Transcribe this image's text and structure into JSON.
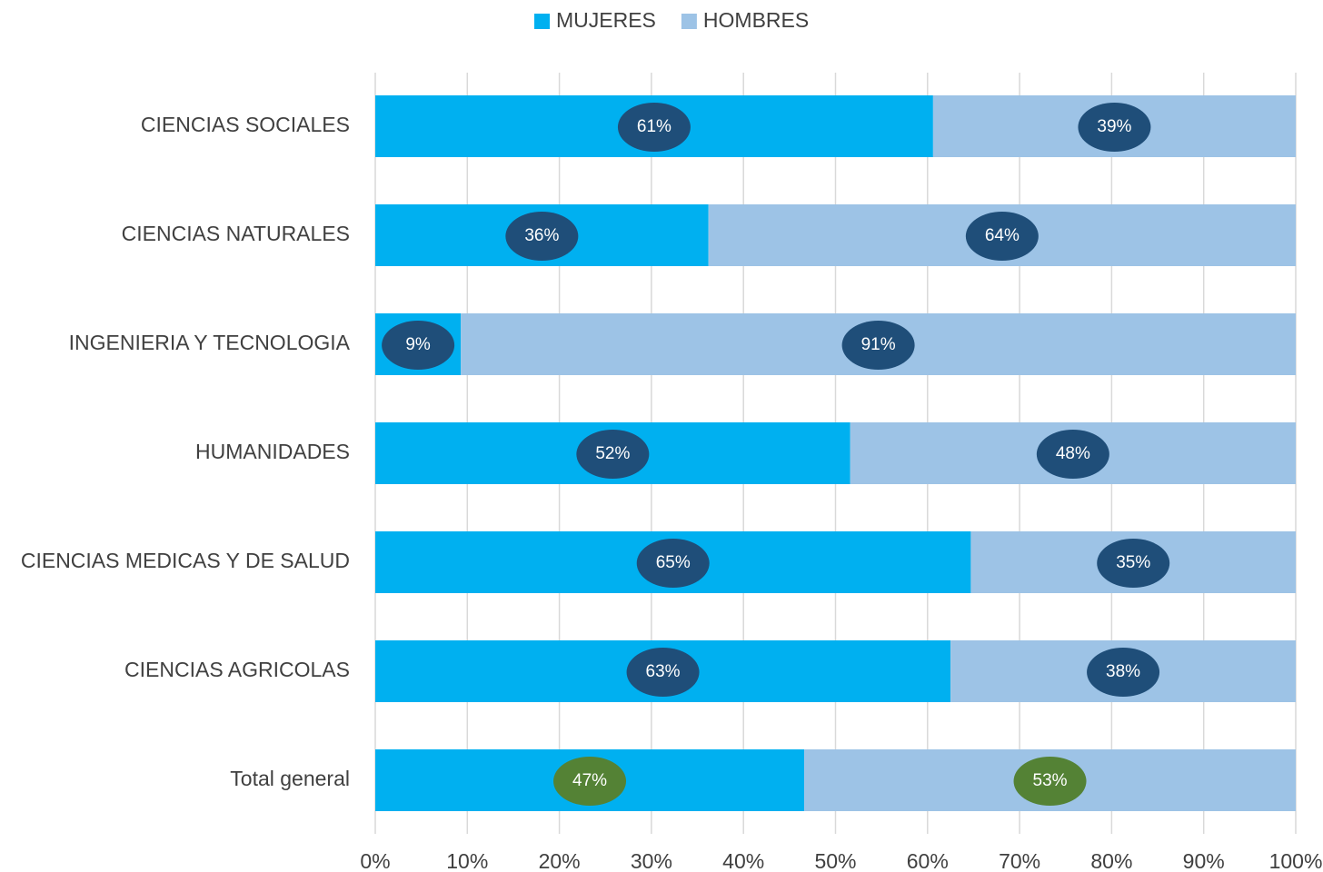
{
  "chart_data": {
    "type": "stacked-bar-horizontal",
    "categories": [
      "CIENCIAS SOCIALES",
      "CIENCIAS NATURALES",
      "INGENIERIA Y TECNOLOGIA",
      "HUMANIDADES",
      "CIENCIAS MEDICAS Y DE SALUD",
      "CIENCIAS AGRICOLAS",
      "Total general"
    ],
    "series": [
      {
        "name": "MUJERES",
        "color": "#00b0f0",
        "values": [
          60.6,
          36.2,
          9.3,
          51.6,
          64.7,
          62.5,
          46.6
        ],
        "value_labels": [
          "61%",
          "36%",
          "9%",
          "52%",
          "65%",
          "63%",
          "47%"
        ],
        "label_colors": [
          "#1f4e79",
          "#1f4e79",
          "#1f4e79",
          "#1f4e79",
          "#1f4e79",
          "#1f4e79",
          "#548235"
        ]
      },
      {
        "name": "HOMBRES",
        "color": "#9dc3e6",
        "values": [
          39.4,
          63.8,
          90.7,
          48.4,
          35.3,
          37.5,
          53.4
        ],
        "value_labels": [
          "39%",
          "64%",
          "91%",
          "48%",
          "35%",
          "38%",
          "53%"
        ],
        "label_colors": [
          "#1f4e79",
          "#1f4e79",
          "#1f4e79",
          "#1f4e79",
          "#1f4e79",
          "#1f4e79",
          "#548235"
        ]
      }
    ],
    "xlim": [
      0,
      100
    ],
    "xticks": [
      {
        "value": 0,
        "label": "0%"
      },
      {
        "value": 10,
        "label": "10%"
      },
      {
        "value": 20,
        "label": "20%"
      },
      {
        "value": 30,
        "label": "30%"
      },
      {
        "value": 40,
        "label": "40%"
      },
      {
        "value": 50,
        "label": "50%"
      },
      {
        "value": 60,
        "label": "60%"
      },
      {
        "value": 70,
        "label": "70%"
      },
      {
        "value": 80,
        "label": "80%"
      },
      {
        "value": 90,
        "label": "90%"
      },
      {
        "value": 100,
        "label": "100%"
      }
    ],
    "grid": true,
    "legend": "top"
  }
}
